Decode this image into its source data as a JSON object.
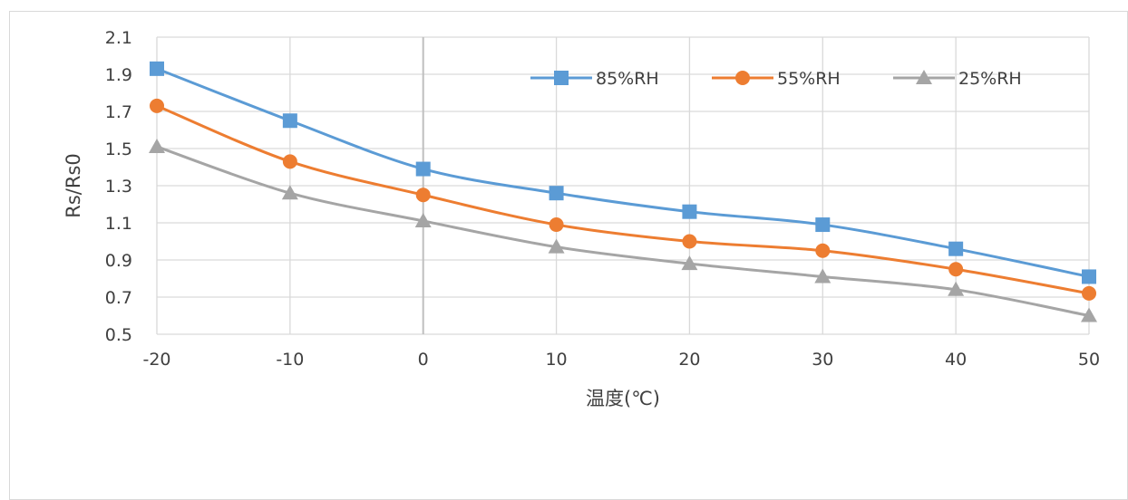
{
  "chart_data": {
    "type": "line",
    "title": "",
    "xlabel": "温度(℃)",
    "ylabel": "Rs/Rs0",
    "x": [
      -20,
      -10,
      0,
      10,
      20,
      30,
      40,
      50
    ],
    "xlim": [
      -20,
      50
    ],
    "ylim": [
      0.5,
      2.1
    ],
    "yticks": [
      "0.5",
      "0.7",
      "0.9",
      "1.1",
      "1.3",
      "1.5",
      "1.7",
      "1.9",
      "2.1"
    ],
    "xticks": [
      "-20",
      "-10",
      "0",
      "10",
      "20",
      "30",
      "40",
      "50"
    ],
    "grid": true,
    "legend_position": "top-right",
    "series": [
      {
        "name": "85%RH",
        "color": "#5b9bd5",
        "marker": "square",
        "values": [
          1.93,
          1.65,
          1.39,
          1.26,
          1.16,
          1.09,
          0.96,
          0.81
        ]
      },
      {
        "name": "55%RH",
        "color": "#ed7d31",
        "marker": "circle",
        "values": [
          1.73,
          1.43,
          1.25,
          1.09,
          1.0,
          0.95,
          0.85,
          0.72
        ]
      },
      {
        "name": "25%RH",
        "color": "#a5a5a5",
        "marker": "triangle",
        "values": [
          1.51,
          1.26,
          1.11,
          0.97,
          0.88,
          0.81,
          0.74,
          0.6
        ]
      }
    ]
  }
}
